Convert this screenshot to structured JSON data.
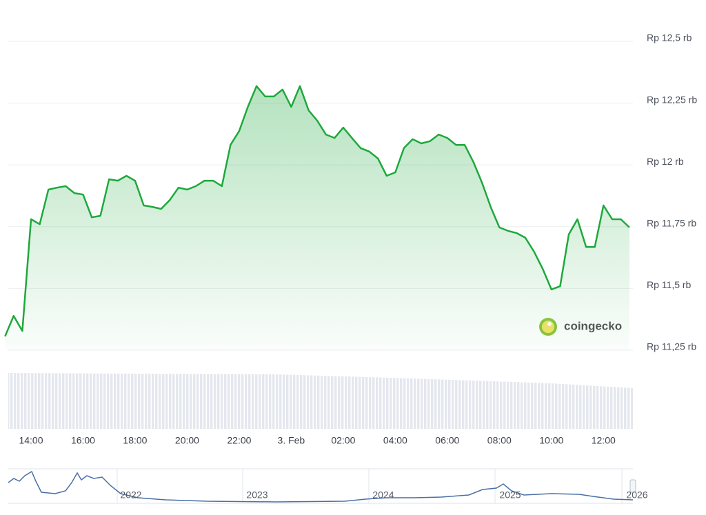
{
  "chart_data": {
    "type": "line",
    "categories": [
      null,
      null,
      null,
      "14:00",
      null,
      null,
      null,
      null,
      null,
      "16:00",
      null,
      null,
      null,
      null,
      null,
      "18:00",
      null,
      null,
      null,
      null,
      null,
      "20:00",
      null,
      null,
      null,
      null,
      null,
      "22:00",
      null,
      null,
      null,
      null,
      null,
      "3. Feb",
      null,
      null,
      null,
      null,
      null,
      "02:00",
      null,
      null,
      null,
      null,
      null,
      "04:00",
      null,
      null,
      null,
      null,
      null,
      "06:00",
      null,
      null,
      null,
      null,
      null,
      "08:00",
      null,
      null,
      null,
      null,
      null,
      "10:00",
      null,
      null,
      null,
      null,
      null,
      "12:00",
      null,
      null,
      null
    ],
    "series": [
      {
        "color": "#1ea83c",
        "values": [
          11306,
          11389,
          11328,
          11780,
          11760,
          11900,
          11908,
          11914,
          11886,
          11880,
          11788,
          11794,
          11942,
          11936,
          11956,
          11936,
          11836,
          11830,
          11822,
          11858,
          11908,
          11900,
          11914,
          11936,
          11936,
          11914,
          12081,
          12137,
          12235,
          12319,
          12277,
          12277,
          12305,
          12235,
          12319,
          12221,
          12179,
          12123,
          12109,
          12151,
          12109,
          12068,
          12054,
          12026,
          11956,
          11970,
          12068,
          12104,
          12087,
          12096,
          12123,
          12109,
          12081,
          12081,
          12012,
          11928,
          11830,
          11747,
          11733,
          11724,
          11705,
          11649,
          11579,
          11496,
          11509,
          11719,
          11780,
          11668,
          11668,
          11836,
          11780,
          11780,
          11747
        ]
      }
    ],
    "ylim": [
      11250,
      12500
    ],
    "yticks": [
      {
        "value": 11250,
        "label": "Rp 11,25 rb"
      },
      {
        "value": 11500,
        "label": "Rp 11,5 rb"
      },
      {
        "value": 11750,
        "label": "Rp 11,75 rb"
      },
      {
        "value": 12000,
        "label": "Rp 12 rb"
      },
      {
        "value": 12250,
        "label": "Rp 12,25 rb"
      },
      {
        "value": 12500,
        "label": "Rp 12,5 rb"
      }
    ],
    "grid": true
  },
  "watermark": "coingecko",
  "navigator": {
    "years": [
      "2022",
      "2023",
      "2024",
      "2025",
      "2026"
    ]
  }
}
